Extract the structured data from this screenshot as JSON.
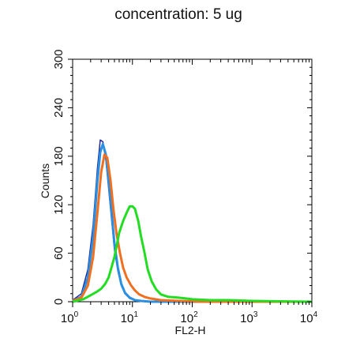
{
  "chart_data": {
    "type": "line",
    "title": "concentration: 5 ug",
    "xlabel": "FL2-H",
    "ylabel": "Counts",
    "x_scale": "log",
    "xlim": [
      1,
      10000
    ],
    "ylim": [
      0,
      300
    ],
    "x_ticks": [
      {
        "base": "10",
        "exp": "0",
        "value": 1
      },
      {
        "base": "10",
        "exp": "1",
        "value": 10
      },
      {
        "base": "10",
        "exp": "2",
        "value": 100
      },
      {
        "base": "10",
        "exp": "3",
        "value": 1000
      },
      {
        "base": "10",
        "exp": "4",
        "value": 10000
      }
    ],
    "y_ticks": [
      "0",
      "60",
      "120",
      "180",
      "240",
      "300"
    ],
    "grid": false,
    "series": [
      {
        "color": "#1f2a9c",
        "x": [
          1,
          1.4,
          1.8,
          2.2,
          2.6,
          2.9,
          3.2,
          3.6,
          4.0,
          4.5,
          5.0,
          5.7,
          6.5,
          7.5,
          9,
          11,
          14,
          20,
          40,
          100,
          1000,
          10000
        ],
        "y": [
          2,
          10,
          40,
          95,
          165,
          200,
          198,
          175,
          140,
          100,
          65,
          38,
          20,
          10,
          4,
          2,
          1,
          0,
          0,
          0,
          0,
          0
        ]
      },
      {
        "color": "#2a8fe0",
        "x": [
          1,
          1.4,
          1.8,
          2.2,
          2.6,
          2.9,
          3.2,
          3.6,
          4.0,
          4.5,
          5.0,
          5.7,
          6.5,
          7.5,
          9,
          11,
          14,
          20,
          40,
          100,
          1000,
          10000
        ],
        "y": [
          1,
          6,
          30,
          80,
          150,
          185,
          195,
          182,
          150,
          110,
          72,
          42,
          22,
          11,
          5,
          2,
          1,
          0,
          0,
          0,
          0,
          0
        ]
      },
      {
        "color": "#f07020",
        "x": [
          1,
          1.4,
          1.8,
          2.2,
          2.6,
          3.0,
          3.4,
          3.8,
          4.3,
          4.8,
          5.4,
          6.2,
          7.0,
          8.0,
          9.5,
          11,
          13,
          16,
          20,
          30,
          60,
          150,
          1000,
          10000
        ],
        "y": [
          1,
          5,
          20,
          55,
          110,
          160,
          182,
          178,
          150,
          115,
          85,
          60,
          42,
          30,
          20,
          14,
          9,
          6,
          4,
          2,
          1,
          0,
          0,
          0
        ]
      },
      {
        "color": "#22dd22",
        "x": [
          1,
          1.5,
          2,
          2.5,
          3,
          3.5,
          4,
          5,
          6,
          7,
          8,
          9,
          10,
          11,
          12.5,
          14,
          16,
          18,
          21,
          25,
          30,
          40,
          60,
          100,
          200,
          400,
          1000,
          10000
        ],
        "y": [
          0,
          3,
          8,
          12,
          16,
          22,
          30,
          55,
          85,
          100,
          110,
          118,
          118,
          115,
          100,
          80,
          60,
          40,
          25,
          15,
          9,
          6,
          5,
          3,
          2,
          2,
          1,
          0
        ]
      }
    ]
  }
}
